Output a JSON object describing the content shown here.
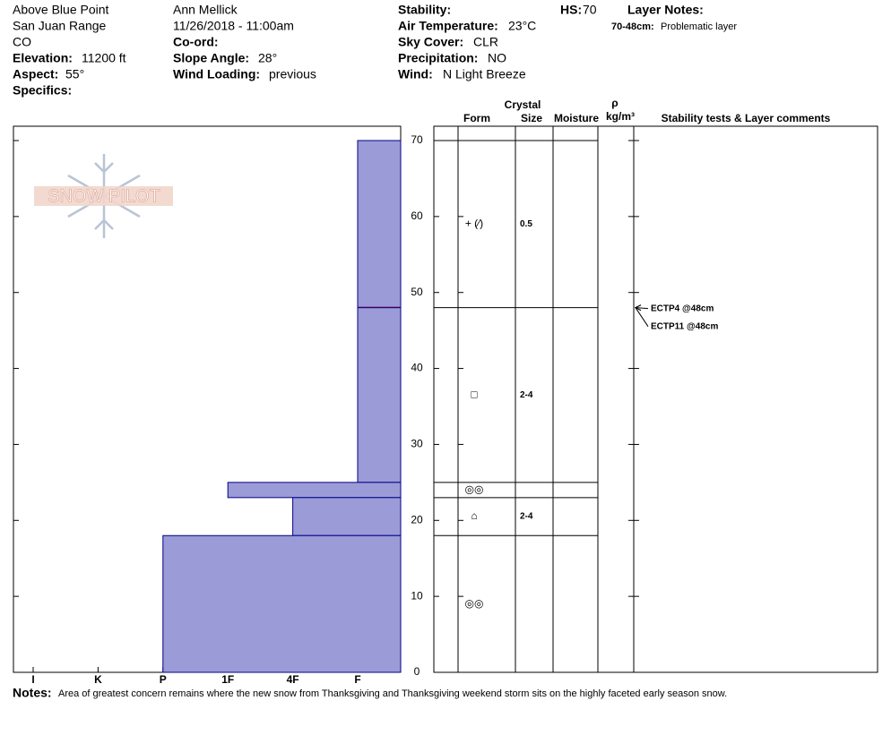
{
  "header": {
    "location": "Above Blue Point",
    "range": "San Juan Range",
    "state": "CO",
    "elevation": {
      "label": "Elevation:",
      "value": "11200 ft"
    },
    "aspect": {
      "label": "Aspect:",
      "value": "55°"
    },
    "specifics": {
      "label": "Specifics:"
    },
    "observer": "Ann Mellick",
    "datetime": "11/26/2018 - 11:00am",
    "coord": {
      "label": "Co-ord:"
    },
    "slope": {
      "label": "Slope Angle:",
      "value": "28°"
    },
    "wind_loading": {
      "label": "Wind Loading:",
      "value": "previous"
    },
    "stability": {
      "label": "Stability:"
    },
    "air_temp": {
      "label": "Air Temperature:",
      "value": "23°C"
    },
    "sky": {
      "label": "Sky Cover:",
      "value": "CLR"
    },
    "precip": {
      "label": "Precipitation:",
      "value": "NO"
    },
    "wind": {
      "label": "Wind:",
      "value": "N Light Breeze"
    },
    "hs": {
      "label": "HS:",
      "value": "70"
    },
    "layer_notes": {
      "label": "Layer Notes:",
      "items": [
        {
          "range": "70-48cm:",
          "text": "Problematic layer"
        }
      ]
    }
  },
  "logo": "SNOW PILOT",
  "profile": {
    "ylim": [
      0,
      70
    ],
    "yticks": [
      0,
      10,
      20,
      30,
      40,
      50,
      60,
      70
    ],
    "hardness_scale": [
      "I",
      "K",
      "P",
      "1F",
      "4F",
      "F"
    ],
    "bar_color": "#9b9bd7",
    "concern_color": "#a01030",
    "columns": {
      "crystal": "Crystal",
      "form": "Form",
      "size": "Size",
      "moisture": "Moisture",
      "rho": "ρ",
      "density": "kg/m³",
      "comments": "Stability tests & Layer comments"
    },
    "layers": [
      {
        "top": 70,
        "bottom": 48,
        "hardness": "F",
        "form": "+ (⁄)",
        "size": "0.5",
        "concern": true
      },
      {
        "top": 48,
        "bottom": 25,
        "hardness": "F",
        "form": "□",
        "size": "2-4"
      },
      {
        "top": 25,
        "bottom": 23,
        "hardness": "1F",
        "form": "◎◎"
      },
      {
        "top": 23,
        "bottom": 18,
        "hardness": "4F",
        "form": "⌂",
        "size": "2-4"
      },
      {
        "top": 18,
        "bottom": 0,
        "hardness": "P",
        "form": "◎◎"
      }
    ],
    "tests": [
      {
        "label": "ECTP4 @48cm",
        "height": 48
      },
      {
        "label": "ECTP11 @48cm",
        "height": 48
      }
    ]
  },
  "notes": {
    "label": "Notes:",
    "text": "Area of greatest concern remains where the new snow from Thanksgiving and Thanksgiving weekend storm sits on the highly faceted early season snow."
  }
}
